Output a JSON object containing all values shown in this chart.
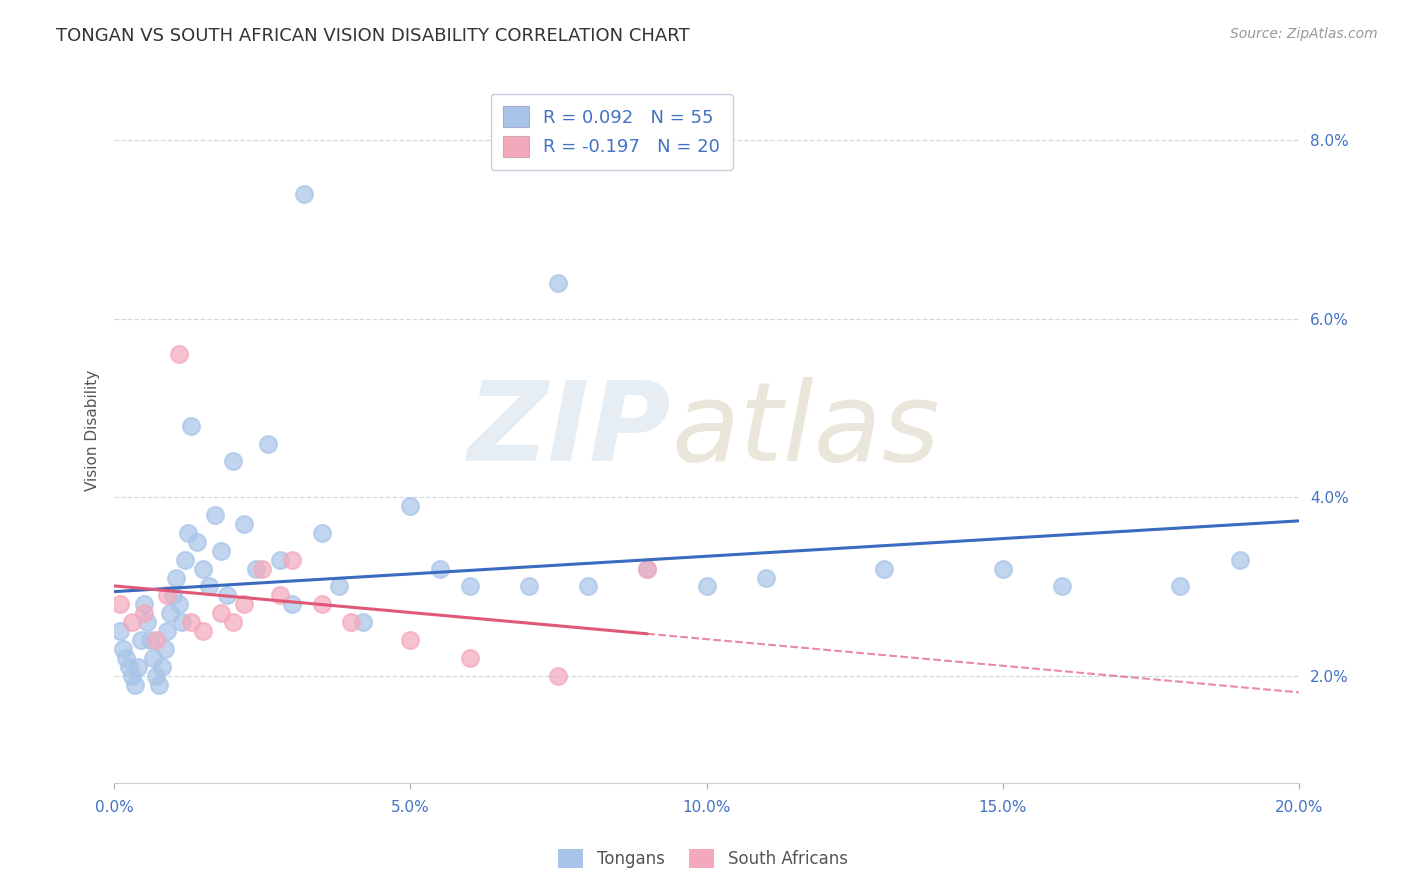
{
  "title": "TONGAN VS SOUTH AFRICAN VISION DISABILITY CORRELATION CHART",
  "source": "Source: ZipAtlas.com",
  "xlabel_tick_vals": [
    0.0,
    5.0,
    10.0,
    15.0,
    20.0
  ],
  "ylabel_tick_vals": [
    2.0,
    4.0,
    6.0,
    8.0
  ],
  "ylabel": "Vision Disability",
  "xmin": 0.0,
  "xmax": 20.0,
  "ymin": 0.8,
  "ymax": 8.7,
  "r_tongan": 0.092,
  "n_tongan": 55,
  "r_sa": -0.197,
  "n_sa": 20,
  "tongan_color": "#a8c4e8",
  "sa_color": "#f4a8bc",
  "tongan_line_color": "#3a6bbf",
  "sa_line_color": "#e05878",
  "grid_color": "#c8d4de",
  "background_color": "#ffffff",
  "legend_box_color": "#ccddee",
  "legend_sa_color": "#f4b8c8",
  "tongan_x": [
    0.1,
    0.15,
    0.2,
    0.25,
    0.3,
    0.35,
    0.4,
    0.45,
    0.5,
    0.55,
    0.6,
    0.65,
    0.7,
    0.75,
    0.8,
    0.85,
    0.9,
    0.95,
    1.0,
    1.05,
    1.1,
    1.15,
    1.2,
    1.25,
    1.3,
    1.4,
    1.5,
    1.6,
    1.7,
    1.8,
    1.9,
    2.0,
    2.2,
    2.4,
    2.6,
    2.8,
    3.0,
    3.2,
    3.5,
    3.8,
    4.2,
    5.0,
    5.5,
    6.0,
    7.0,
    7.5,
    8.0,
    9.0,
    10.0,
    11.0,
    13.0,
    15.0,
    16.0,
    18.0,
    19.0
  ],
  "tongan_y": [
    2.5,
    2.3,
    2.2,
    2.1,
    2.0,
    1.9,
    2.1,
    2.4,
    2.8,
    2.6,
    2.4,
    2.2,
    2.0,
    1.9,
    2.1,
    2.3,
    2.5,
    2.7,
    2.9,
    3.1,
    2.8,
    2.6,
    3.3,
    3.6,
    4.8,
    3.5,
    3.2,
    3.0,
    3.8,
    3.4,
    2.9,
    4.4,
    3.7,
    3.2,
    4.6,
    3.3,
    2.8,
    7.4,
    3.6,
    3.0,
    2.6,
    3.9,
    3.2,
    3.0,
    3.0,
    6.4,
    3.0,
    3.2,
    3.0,
    3.1,
    3.2,
    3.2,
    3.0,
    3.0,
    3.3
  ],
  "sa_x": [
    0.1,
    0.3,
    0.5,
    0.7,
    0.9,
    1.1,
    1.3,
    1.5,
    1.8,
    2.0,
    2.2,
    2.5,
    2.8,
    3.0,
    3.5,
    4.0,
    5.0,
    6.0,
    7.5,
    9.0
  ],
  "sa_y": [
    2.8,
    2.6,
    2.7,
    2.4,
    2.9,
    5.6,
    2.6,
    2.5,
    2.7,
    2.6,
    2.8,
    3.2,
    2.9,
    3.3,
    2.8,
    2.6,
    2.4,
    2.2,
    2.0,
    3.2
  ]
}
